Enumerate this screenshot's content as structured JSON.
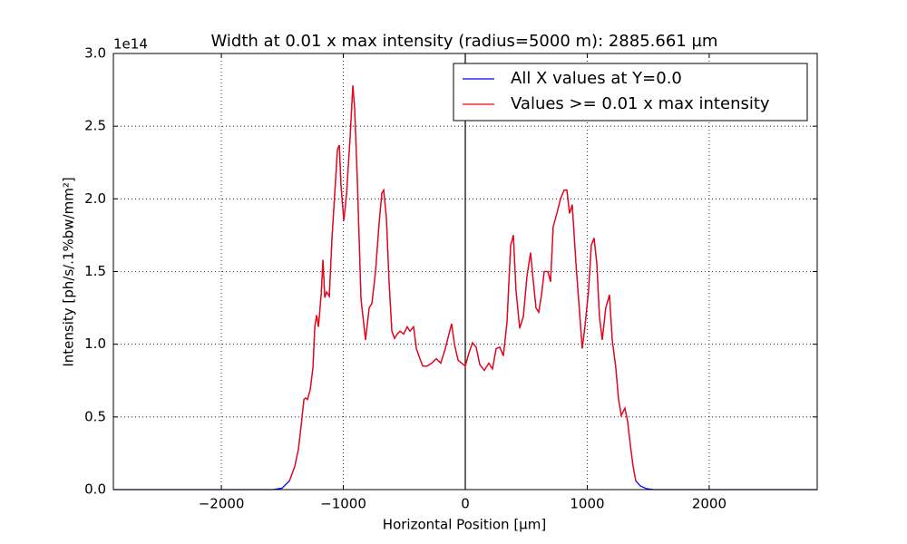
{
  "chart_data": {
    "type": "line",
    "title": "Width at 0.01 x max intensity (radius=5000 m): 2885.661 µm",
    "x_label": "Horizontal Position [µm]",
    "y_label": "Intensity [ph/s/.1%bw/mm²]",
    "y_offset_label": "1e14",
    "xlim": [
      -2885.661,
      2885.661
    ],
    "ylim": [
      0,
      3
    ],
    "xticks": [
      {
        "value": -2000,
        "label": "−2000"
      },
      {
        "value": -1000,
        "label": "−1000"
      },
      0,
      1000,
      2000
    ],
    "yticks": [
      {
        "value": 0,
        "label": "0.0"
      },
      0.5,
      {
        "value": 1,
        "label": "1.0"
      },
      1.5,
      {
        "value": 2,
        "label": "2.0"
      },
      2.5,
      {
        "value": 3,
        "label": "3.0"
      }
    ],
    "grid": true,
    "vlines": [
      0
    ],
    "legend": "upper right",
    "series": [
      {
        "name": "All X values at Y=0.0",
        "color": "#0000ff",
        "x": [
          -2885,
          -2500,
          -2000,
          -1800,
          -1650,
          -1576,
          -1502,
          -1442,
          -1398,
          -1368,
          -1346,
          -1323,
          -1309,
          -1294,
          -1271,
          -1249,
          -1234,
          -1219,
          -1204,
          -1182,
          -1167,
          -1152,
          -1138,
          -1115,
          -1093,
          -1071,
          -1048,
          -1033,
          -1019,
          -996,
          -974,
          -944,
          -922,
          -907,
          -885,
          -855,
          -818,
          -788,
          -766,
          -736,
          -706,
          -684,
          -669,
          -647,
          -625,
          -602,
          -580,
          -558,
          -535,
          -506,
          -476,
          -454,
          -424,
          -401,
          -372,
          -349,
          -312,
          -275,
          -238,
          -201,
          -164,
          -134,
          -112,
          -89,
          -59,
          -30,
          0,
          30,
          59,
          89,
          119,
          156,
          193,
          223,
          253,
          283,
          312,
          342,
          372,
          394,
          416,
          446,
          476,
          506,
          535,
          558,
          580,
          602,
          625,
          647,
          677,
          699,
          721,
          751,
          781,
          810,
          833,
          855,
          877,
          907,
          937,
          959,
          981,
          1011,
          1033,
          1056,
          1078,
          1100,
          1123,
          1152,
          1182,
          1205,
          1234,
          1257,
          1279,
          1309,
          1331,
          1353,
          1376,
          1398,
          1435,
          1487,
          1546,
          1700,
          2000,
          2500,
          2885
        ],
        "values": [
          0,
          0,
          0,
          0,
          0,
          0,
          0.01,
          0.06,
          0.16,
          0.28,
          0.44,
          0.62,
          0.63,
          0.62,
          0.69,
          0.84,
          1.12,
          1.2,
          1.12,
          1.34,
          1.58,
          1.32,
          1.36,
          1.33,
          1.73,
          2.03,
          2.34,
          2.37,
          2.09,
          1.85,
          2.03,
          2.43,
          2.78,
          2.62,
          2.12,
          1.31,
          1.03,
          1.25,
          1.28,
          1.5,
          1.84,
          2.04,
          2.06,
          1.87,
          1.43,
          1.09,
          1.04,
          1.07,
          1.09,
          1.07,
          1.12,
          1.09,
          1.12,
          0.97,
          0.9,
          0.85,
          0.85,
          0.87,
          0.9,
          0.87,
          0.97,
          1.07,
          1.14,
          1.0,
          0.89,
          0.87,
          0.85,
          0.94,
          1.01,
          0.98,
          0.86,
          0.82,
          0.87,
          0.83,
          0.97,
          0.98,
          0.92,
          1.15,
          1.68,
          1.75,
          1.37,
          1.11,
          1.19,
          1.47,
          1.63,
          1.43,
          1.25,
          1.22,
          1.34,
          1.5,
          1.5,
          1.43,
          1.81,
          1.9,
          2.0,
          2.06,
          2.06,
          1.9,
          1.96,
          1.56,
          1.22,
          0.97,
          1.12,
          1.37,
          1.68,
          1.73,
          1.56,
          1.19,
          1.03,
          1.25,
          1.34,
          1.03,
          0.84,
          0.62,
          0.51,
          0.56,
          0.47,
          0.31,
          0.16,
          0.06,
          0.025,
          0.006,
          0,
          0,
          0,
          0,
          0
        ]
      },
      {
        "name": "Values >= 0.01 x max intensity",
        "color": "#ff0000",
        "x": [
          -1442,
          -1398,
          -1368,
          -1346,
          -1323,
          -1309,
          -1294,
          -1271,
          -1249,
          -1234,
          -1219,
          -1204,
          -1182,
          -1167,
          -1152,
          -1138,
          -1115,
          -1093,
          -1071,
          -1048,
          -1033,
          -1019,
          -996,
          -974,
          -944,
          -922,
          -907,
          -885,
          -855,
          -818,
          -788,
          -766,
          -736,
          -706,
          -684,
          -669,
          -647,
          -625,
          -602,
          -580,
          -558,
          -535,
          -506,
          -476,
          -454,
          -424,
          -401,
          -372,
          -349,
          -312,
          -275,
          -238,
          -201,
          -164,
          -134,
          -112,
          -89,
          -59,
          -30,
          0,
          30,
          59,
          89,
          119,
          156,
          193,
          223,
          253,
          283,
          312,
          342,
          372,
          394,
          416,
          446,
          476,
          506,
          535,
          558,
          580,
          602,
          625,
          647,
          677,
          699,
          721,
          751,
          781,
          810,
          833,
          855,
          877,
          907,
          937,
          959,
          981,
          1011,
          1033,
          1056,
          1078,
          1100,
          1123,
          1152,
          1182,
          1205,
          1234,
          1257,
          1279,
          1309,
          1331,
          1353,
          1376,
          1398
        ],
        "values": [
          0.06,
          0.16,
          0.28,
          0.44,
          0.62,
          0.63,
          0.62,
          0.69,
          0.84,
          1.12,
          1.2,
          1.12,
          1.34,
          1.58,
          1.32,
          1.36,
          1.33,
          1.73,
          2.03,
          2.34,
          2.37,
          2.09,
          1.85,
          2.03,
          2.43,
          2.78,
          2.62,
          2.12,
          1.31,
          1.03,
          1.25,
          1.28,
          1.5,
          1.84,
          2.04,
          2.06,
          1.87,
          1.43,
          1.09,
          1.04,
          1.07,
          1.09,
          1.07,
          1.12,
          1.09,
          1.12,
          0.97,
          0.9,
          0.85,
          0.85,
          0.87,
          0.9,
          0.87,
          0.97,
          1.07,
          1.14,
          1.0,
          0.89,
          0.87,
          0.85,
          0.94,
          1.01,
          0.98,
          0.86,
          0.82,
          0.87,
          0.83,
          0.97,
          0.98,
          0.92,
          1.15,
          1.68,
          1.75,
          1.37,
          1.11,
          1.19,
          1.47,
          1.63,
          1.43,
          1.25,
          1.22,
          1.34,
          1.5,
          1.5,
          1.43,
          1.81,
          1.9,
          2.0,
          2.06,
          2.06,
          1.9,
          1.96,
          1.56,
          1.22,
          0.97,
          1.12,
          1.37,
          1.68,
          1.73,
          1.56,
          1.19,
          1.03,
          1.25,
          1.34,
          1.03,
          0.84,
          0.62,
          0.51,
          0.56,
          0.47,
          0.31,
          0.16,
          0.06
        ]
      }
    ]
  }
}
